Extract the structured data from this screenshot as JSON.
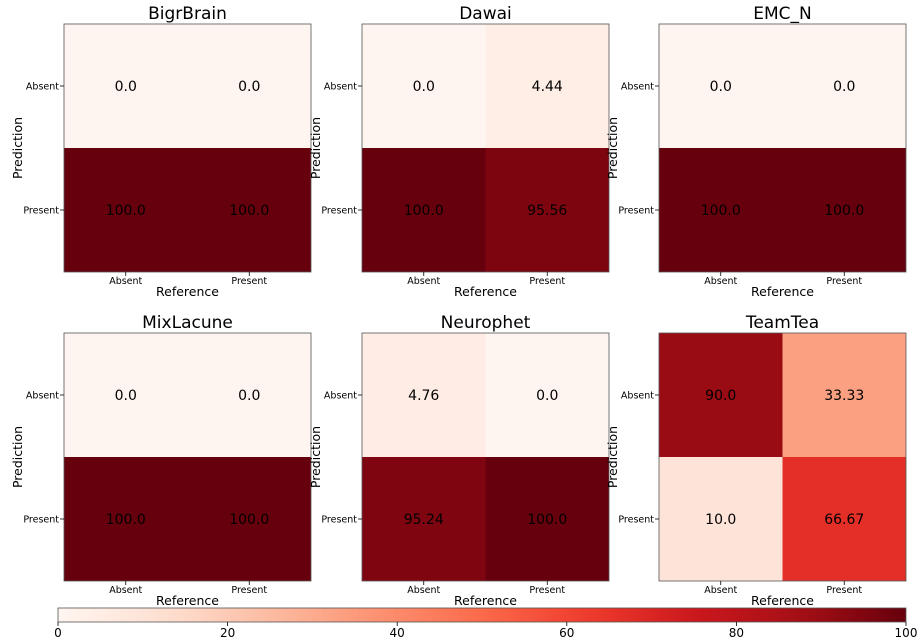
{
  "chart_data": [
    {
      "type": "heatmap",
      "title": "BigrBrain",
      "x_categories": [
        "Absent",
        "Present"
      ],
      "y_categories": [
        "Absent",
        "Present"
      ],
      "xlabel": "Reference",
      "ylabel": "Prediction",
      "values": [
        [
          0.0,
          0.0
        ],
        [
          100.0,
          100.0
        ]
      ],
      "labels": [
        [
          "0.0",
          "0.0"
        ],
        [
          "100.0",
          "100.0"
        ]
      ]
    },
    {
      "type": "heatmap",
      "title": "Dawai",
      "x_categories": [
        "Absent",
        "Present"
      ],
      "y_categories": [
        "Absent",
        "Present"
      ],
      "xlabel": "Reference",
      "ylabel": "Prediction",
      "values": [
        [
          0.0,
          4.44
        ],
        [
          100.0,
          95.56
        ]
      ],
      "labels": [
        [
          "0.0",
          "4.44"
        ],
        [
          "100.0",
          "95.56"
        ]
      ]
    },
    {
      "type": "heatmap",
      "title": "EMC_N",
      "x_categories": [
        "Absent",
        "Present"
      ],
      "y_categories": [
        "Absent",
        "Present"
      ],
      "xlabel": "Reference",
      "ylabel": "Prediction",
      "values": [
        [
          0.0,
          0.0
        ],
        [
          100.0,
          100.0
        ]
      ],
      "labels": [
        [
          "0.0",
          "0.0"
        ],
        [
          "100.0",
          "100.0"
        ]
      ]
    },
    {
      "type": "heatmap",
      "title": "MixLacune",
      "x_categories": [
        "Absent",
        "Present"
      ],
      "y_categories": [
        "Absent",
        "Present"
      ],
      "xlabel": "Reference",
      "ylabel": "Prediction",
      "values": [
        [
          0.0,
          0.0
        ],
        [
          100.0,
          100.0
        ]
      ],
      "labels": [
        [
          "0.0",
          "0.0"
        ],
        [
          "100.0",
          "100.0"
        ]
      ]
    },
    {
      "type": "heatmap",
      "title": "Neurophet",
      "x_categories": [
        "Absent",
        "Present"
      ],
      "y_categories": [
        "Absent",
        "Present"
      ],
      "xlabel": "Reference",
      "ylabel": "Prediction",
      "values": [
        [
          4.76,
          0.0
        ],
        [
          95.24,
          100.0
        ]
      ],
      "labels": [
        [
          "4.76",
          "0.0"
        ],
        [
          "95.24",
          "100.0"
        ]
      ]
    },
    {
      "type": "heatmap",
      "title": "TeamTea",
      "x_categories": [
        "Absent",
        "Present"
      ],
      "y_categories": [
        "Absent",
        "Present"
      ],
      "xlabel": "Reference",
      "ylabel": "Prediction",
      "values": [
        [
          90.0,
          33.33
        ],
        [
          10.0,
          66.67
        ]
      ],
      "labels": [
        [
          "90.0",
          "33.33"
        ],
        [
          "10.0",
          "66.67"
        ]
      ]
    }
  ],
  "colorbar": {
    "min": 0,
    "max": 100,
    "ticks": [
      "0",
      "20",
      "40",
      "60",
      "80",
      "100"
    ],
    "colormap": "Reds",
    "orientation": "horizontal"
  }
}
